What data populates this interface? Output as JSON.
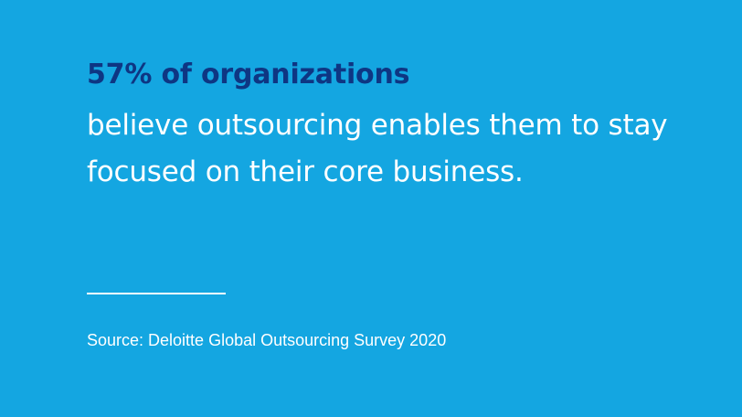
{
  "stat": {
    "headline": "57% of organizations",
    "body": "believe outsourcing enables them to stay focused on their core business."
  },
  "source": "Source: Deloitte Global Outsourcing Survey 2020",
  "colors": {
    "background": "#14a6e1",
    "headline": "#0e3683",
    "text": "#ffffff"
  }
}
